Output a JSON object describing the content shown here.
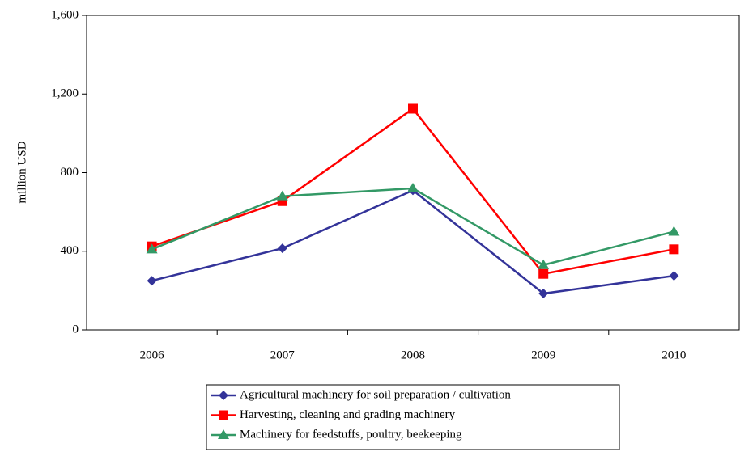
{
  "chart_data": {
    "type": "line",
    "y_label": "million USD",
    "categories": [
      "2006",
      "2007",
      "2008",
      "2009",
      "2010"
    ],
    "series": [
      {
        "name": "Agricultural machinery for soil preparation / cultivation",
        "color": "#333399",
        "marker": "diamond",
        "values": [
          250,
          415,
          710,
          185,
          275
        ]
      },
      {
        "name": "Harvesting, cleaning and grading machinery",
        "color": "#ff0000",
        "marker": "square",
        "values": [
          425,
          655,
          1125,
          285,
          410
        ]
      },
      {
        "name": "Machinery for feedstuffs, poultry, beekeeping",
        "color": "#339966",
        "marker": "triangle",
        "values": [
          410,
          680,
          720,
          330,
          500
        ]
      }
    ],
    "ylim": [
      0,
      1600
    ],
    "yticks": [
      0,
      400,
      800,
      {
        "value": 1200,
        "label": "1,200"
      },
      {
        "value": 1600,
        "label": "1,600"
      }
    ],
    "grid": false,
    "legend": "bottom"
  }
}
